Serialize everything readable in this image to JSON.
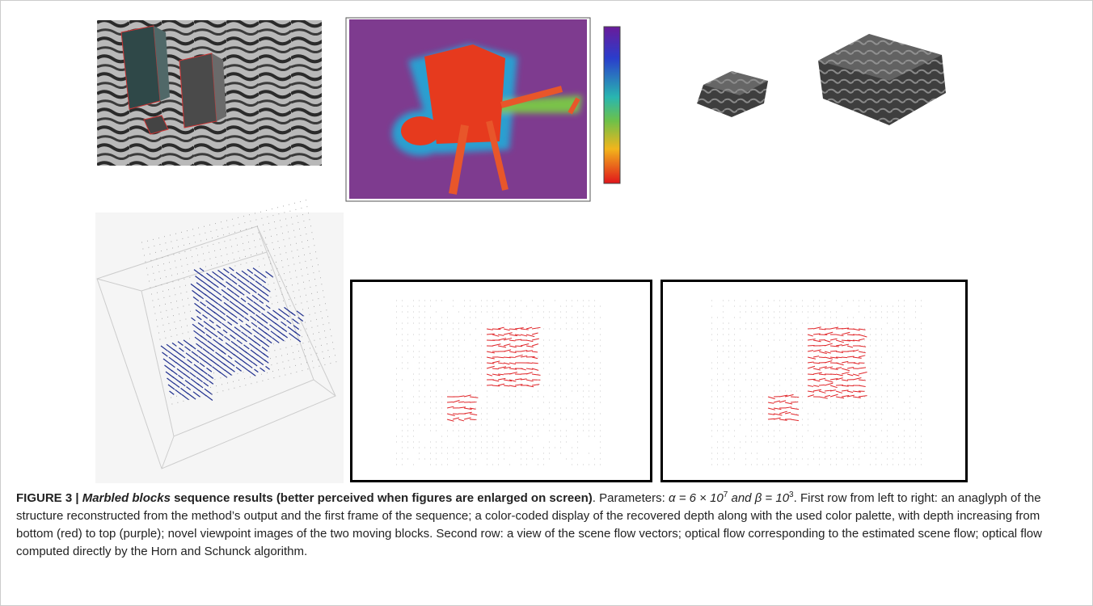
{
  "figure": {
    "label": "FIGURE 3 | ",
    "title_italic": "Marbled blocks",
    "title_rest": " sequence results (better perceived when figures are enlarged on screen)",
    "params_prefix": ". Parameters: ",
    "alpha": "α = 6 × 10",
    "alpha_exp": "7",
    "beta": " and β = 10",
    "beta_exp": "3",
    "description": ". First row from left to right: an anaglyph of the structure reconstructed from the method’s output and the first frame of the sequence; a color-coded display of the recovered depth along with the used color palette, with depth increasing from bottom (red) to top (purple); novel viewpoint images of the two moving blocks. Second row: a view of the scene flow vectors; optical flow corresponding to the estimated scene flow; optical flow computed directly by the Horn and Schunck algorithm."
  }
}
